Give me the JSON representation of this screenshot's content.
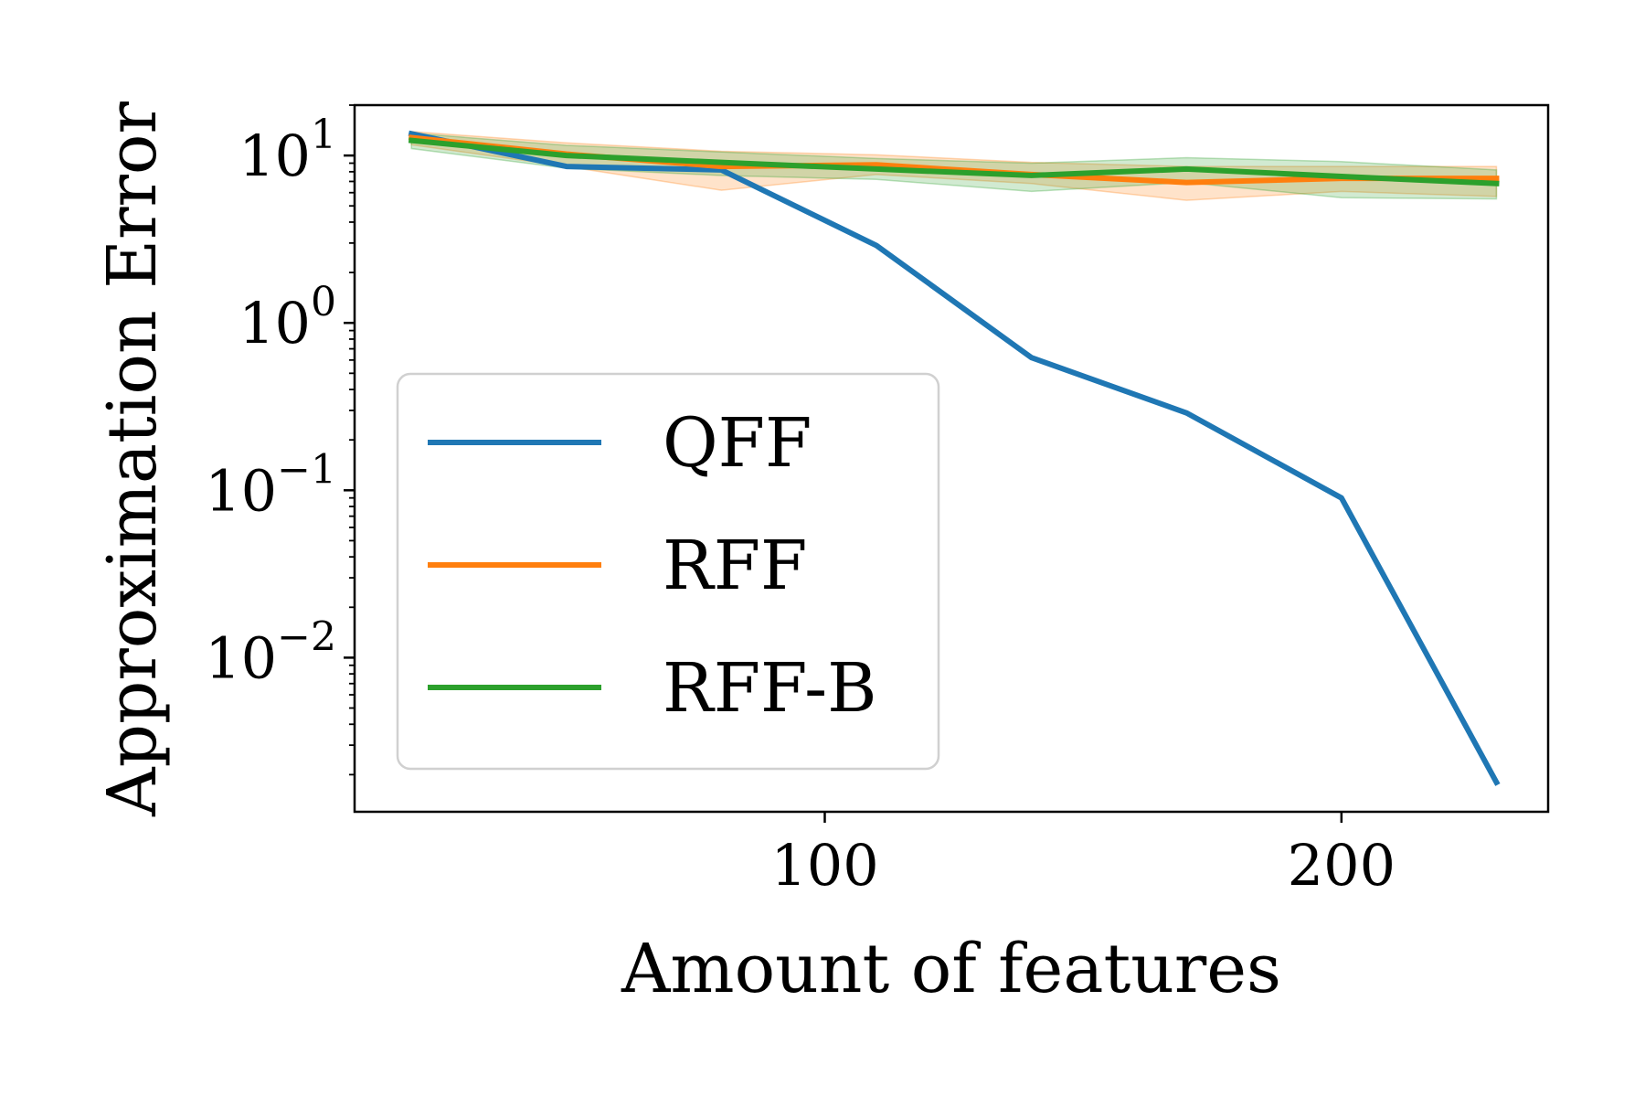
{
  "chart_data": {
    "type": "line",
    "xlabel": "Amount of features",
    "ylabel": "Approximation Error",
    "x_ticks": [
      100,
      200
    ],
    "y_ticks": [
      {
        "value": 10,
        "base": "10",
        "exp": "1"
      },
      {
        "value": 1,
        "base": "10",
        "exp": "0"
      },
      {
        "value": 0.1,
        "base": "10",
        "exp": "−1"
      },
      {
        "value": 0.01,
        "base": "10",
        "exp": "−2"
      }
    ],
    "yscale": "log",
    "xlim": [
      9,
      240
    ],
    "ylim": [
      0.0012,
      20
    ],
    "grid": false,
    "legend_position": "lower-left",
    "x": [
      20,
      50,
      80,
      110,
      140,
      170,
      200,
      230
    ],
    "series": [
      {
        "name": "QFF",
        "color": "#1f77b4",
        "values": [
          13.5,
          8.6,
          8.2,
          2.9,
          0.62,
          0.29,
          0.09,
          0.0018
        ]
      },
      {
        "name": "RFF",
        "color": "#ff7f0e",
        "values": [
          12.8,
          10.2,
          8.6,
          8.8,
          7.7,
          6.9,
          7.3,
          7.3
        ],
        "band_low": [
          11.6,
          8.6,
          6.2,
          7.7,
          6.8,
          5.4,
          6.1,
          5.7
        ],
        "band_high": [
          13.9,
          11.9,
          10.6,
          10.1,
          9.1,
          8.6,
          8.6,
          8.6
        ]
      },
      {
        "name": "RFF-B",
        "color": "#2ca02c",
        "values": [
          12.3,
          10.0,
          9.1,
          8.3,
          7.6,
          8.3,
          7.5,
          6.8
        ],
        "band_low": [
          11.0,
          8.4,
          7.6,
          7.2,
          6.1,
          6.9,
          5.6,
          5.5
        ],
        "band_high": [
          13.6,
          11.5,
          10.5,
          9.6,
          9.0,
          9.7,
          9.2,
          8.2
        ]
      }
    ]
  }
}
